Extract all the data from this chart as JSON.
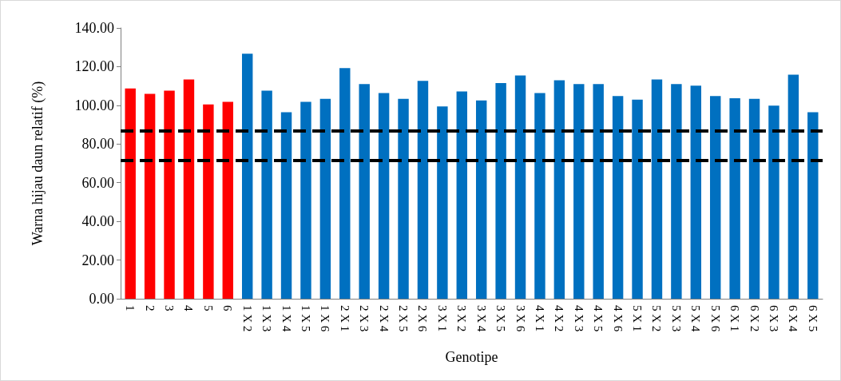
{
  "chart_data": {
    "type": "bar",
    "xlabel": "Genotipe",
    "ylabel": "Warna hijau daun relatif (%)",
    "categories": [
      "1",
      "2",
      "3",
      "4",
      "5",
      "6",
      "1 X 2",
      "1 X 3",
      "1 X 4",
      "1 X 5",
      "1 X 6",
      "2 X 1",
      "2 X 3",
      "2 X 4",
      "2 X 5",
      "2 X 6",
      "3 X 1",
      "3 X 2",
      "3 X 4",
      "3 X 5",
      "3 X 6",
      "4 X 1",
      "4 X 2",
      "4 X 3",
      "4 X 5",
      "4 X 6",
      "5 X 1",
      "5 X 2",
      "5 X 3",
      "5 X 4",
      "5 X 6",
      "6 X 1",
      "6 X 2",
      "6 X 3",
      "6 X 4",
      "6 X 5"
    ],
    "values": [
      108.7,
      105.9,
      107.6,
      113.4,
      100.5,
      101.8,
      126.7,
      107.6,
      96.4,
      101.8,
      103.3,
      119.2,
      111.0,
      106.3,
      103.3,
      112.6,
      99.4,
      107.2,
      102.5,
      111.5,
      115.4,
      106.3,
      113.0,
      111.0,
      111.0,
      104.8,
      102.9,
      113.4,
      111.0,
      110.2,
      104.8,
      103.7,
      103.3,
      99.8,
      115.8,
      96.4
    ],
    "colors": [
      "#ff0000",
      "#ff0000",
      "#ff0000",
      "#ff0000",
      "#ff0000",
      "#ff0000",
      "#0070c0",
      "#0070c0",
      "#0070c0",
      "#0070c0",
      "#0070c0",
      "#0070c0",
      "#0070c0",
      "#0070c0",
      "#0070c0",
      "#0070c0",
      "#0070c0",
      "#0070c0",
      "#0070c0",
      "#0070c0",
      "#0070c0",
      "#0070c0",
      "#0070c0",
      "#0070c0",
      "#0070c0",
      "#0070c0",
      "#0070c0",
      "#0070c0",
      "#0070c0",
      "#0070c0",
      "#0070c0",
      "#0070c0",
      "#0070c0",
      "#0070c0",
      "#0070c0",
      "#0070c0"
    ],
    "ylim": [
      0,
      140
    ],
    "yticks": [
      {
        "value": 0,
        "label": "0.00"
      },
      {
        "value": 20,
        "label": "20.00"
      },
      {
        "value": 40,
        "label": "40.00"
      },
      {
        "value": 60,
        "label": "60.00"
      },
      {
        "value": 80,
        "label": "80.00"
      },
      {
        "value": 100,
        "label": "100.00"
      },
      {
        "value": 120,
        "label": "120.00"
      },
      {
        "value": 140,
        "label": "140.00"
      }
    ],
    "ref_lines": [
      {
        "axis": "y",
        "value": 86.7,
        "color": "#000000",
        "line_style": "dashed"
      },
      {
        "axis": "y",
        "value": 71.4,
        "color": "#000000",
        "line_style": "dashed"
      }
    ],
    "grid": false
  }
}
